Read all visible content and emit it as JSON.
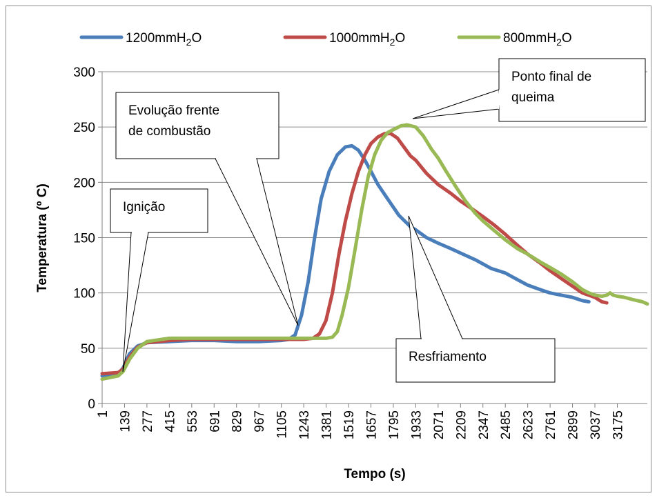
{
  "chart_data": {
    "type": "line",
    "xlabel": "Tempo (s)",
    "ylabel": "Temperatura (º C)",
    "ylim": [
      0,
      300
    ],
    "y_ticks": [
      0,
      50,
      100,
      150,
      200,
      250,
      300
    ],
    "x_ticks": [
      "1",
      "139",
      "277",
      "415",
      "553",
      "691",
      "829",
      "967",
      "1105",
      "1243",
      "1381",
      "1519",
      "1657",
      "1795",
      "1933",
      "2071",
      "2209",
      "2347",
      "2485",
      "2623",
      "2761",
      "2899",
      "3037",
      "3175"
    ],
    "x_range": [
      1,
      3360
    ],
    "grid": "horizontal",
    "legend_position": "top",
    "series": [
      {
        "name": "1200mmH2O",
        "legend_main": "1200mmH",
        "legend_sub": "2",
        "legend_tail": "O",
        "color": "#4a7ebb",
        "points": [
          [
            1,
            25
          ],
          [
            100,
            27
          ],
          [
            130,
            32
          ],
          [
            170,
            45
          ],
          [
            220,
            52
          ],
          [
            277,
            55
          ],
          [
            415,
            56
          ],
          [
            553,
            57
          ],
          [
            691,
            57
          ],
          [
            829,
            56
          ],
          [
            967,
            56
          ],
          [
            1105,
            57
          ],
          [
            1150,
            58
          ],
          [
            1190,
            62
          ],
          [
            1230,
            80
          ],
          [
            1270,
            110
          ],
          [
            1310,
            150
          ],
          [
            1350,
            185
          ],
          [
            1400,
            210
          ],
          [
            1450,
            225
          ],
          [
            1500,
            232
          ],
          [
            1540,
            233
          ],
          [
            1580,
            229
          ],
          [
            1620,
            220
          ],
          [
            1657,
            210
          ],
          [
            1700,
            198
          ],
          [
            1760,
            185
          ],
          [
            1830,
            170
          ],
          [
            1900,
            160
          ],
          [
            1933,
            157
          ],
          [
            2000,
            150
          ],
          [
            2071,
            145
          ],
          [
            2150,
            140
          ],
          [
            2209,
            136
          ],
          [
            2300,
            130
          ],
          [
            2400,
            122
          ],
          [
            2485,
            118
          ],
          [
            2560,
            112
          ],
          [
            2623,
            107
          ],
          [
            2700,
            103
          ],
          [
            2761,
            100
          ],
          [
            2830,
            98
          ],
          [
            2899,
            96
          ],
          [
            2960,
            93
          ],
          [
            3000,
            92
          ]
        ]
      },
      {
        "name": "1000mmH2O",
        "legend_main": "1000mmH",
        "legend_sub": "2",
        "legend_tail": "O",
        "color": "#be4b48",
        "points": [
          [
            1,
            27
          ],
          [
            100,
            28
          ],
          [
            130,
            31
          ],
          [
            170,
            42
          ],
          [
            220,
            51
          ],
          [
            277,
            55
          ],
          [
            415,
            57
          ],
          [
            553,
            58
          ],
          [
            691,
            58
          ],
          [
            829,
            58
          ],
          [
            967,
            58
          ],
          [
            1105,
            58
          ],
          [
            1243,
            58
          ],
          [
            1300,
            59
          ],
          [
            1340,
            63
          ],
          [
            1380,
            75
          ],
          [
            1420,
            100
          ],
          [
            1460,
            135
          ],
          [
            1500,
            165
          ],
          [
            1540,
            190
          ],
          [
            1580,
            210
          ],
          [
            1620,
            225
          ],
          [
            1657,
            235
          ],
          [
            1700,
            241
          ],
          [
            1740,
            244
          ],
          [
            1780,
            244
          ],
          [
            1820,
            240
          ],
          [
            1860,
            232
          ],
          [
            1900,
            224
          ],
          [
            1933,
            220
          ],
          [
            2000,
            208
          ],
          [
            2071,
            198
          ],
          [
            2150,
            190
          ],
          [
            2209,
            183
          ],
          [
            2280,
            176
          ],
          [
            2347,
            169
          ],
          [
            2420,
            161
          ],
          [
            2485,
            153
          ],
          [
            2560,
            143
          ],
          [
            2623,
            135
          ],
          [
            2700,
            127
          ],
          [
            2761,
            120
          ],
          [
            2830,
            113
          ],
          [
            2899,
            106
          ],
          [
            2960,
            100
          ],
          [
            3037,
            96
          ],
          [
            3080,
            92
          ],
          [
            3110,
            91
          ]
        ]
      },
      {
        "name": "800mmH2O",
        "legend_main": "800mmH",
        "legend_sub": "2",
        "legend_tail": "O",
        "color": "#98b954",
        "points": [
          [
            1,
            22
          ],
          [
            100,
            25
          ],
          [
            130,
            29
          ],
          [
            170,
            40
          ],
          [
            220,
            50
          ],
          [
            277,
            56
          ],
          [
            415,
            59
          ],
          [
            553,
            59
          ],
          [
            691,
            59
          ],
          [
            829,
            59
          ],
          [
            967,
            59
          ],
          [
            1105,
            59
          ],
          [
            1243,
            59
          ],
          [
            1381,
            59
          ],
          [
            1420,
            60
          ],
          [
            1450,
            65
          ],
          [
            1480,
            80
          ],
          [
            1519,
            105
          ],
          [
            1560,
            140
          ],
          [
            1600,
            175
          ],
          [
            1640,
            205
          ],
          [
            1680,
            225
          ],
          [
            1720,
            238
          ],
          [
            1760,
            245
          ],
          [
            1800,
            248
          ],
          [
            1840,
            251
          ],
          [
            1880,
            252
          ],
          [
            1933,
            250
          ],
          [
            1980,
            242
          ],
          [
            2030,
            230
          ],
          [
            2071,
            222
          ],
          [
            2120,
            210
          ],
          [
            2180,
            196
          ],
          [
            2240,
            183
          ],
          [
            2300,
            172
          ],
          [
            2347,
            165
          ],
          [
            2420,
            156
          ],
          [
            2485,
            148
          ],
          [
            2560,
            140
          ],
          [
            2623,
            135
          ],
          [
            2700,
            128
          ],
          [
            2761,
            123
          ],
          [
            2830,
            117
          ],
          [
            2899,
            110
          ],
          [
            2960,
            103
          ],
          [
            3000,
            100
          ],
          [
            3037,
            98
          ],
          [
            3080,
            97
          ],
          [
            3110,
            98
          ],
          [
            3130,
            100
          ],
          [
            3150,
            98
          ],
          [
            3175,
            97
          ],
          [
            3220,
            96
          ],
          [
            3270,
            94
          ],
          [
            3330,
            92
          ],
          [
            3360,
            90
          ]
        ]
      }
    ],
    "annotations": [
      {
        "id": "ignicao",
        "lines": [
          "Ignição"
        ]
      },
      {
        "id": "evolucao",
        "lines": [
          "Evolução frente",
          "de combustão"
        ]
      },
      {
        "id": "ponto-final",
        "lines": [
          "Ponto final de",
          "queima"
        ]
      },
      {
        "id": "resfriamento",
        "lines": [
          "Resfriamento"
        ]
      }
    ]
  }
}
